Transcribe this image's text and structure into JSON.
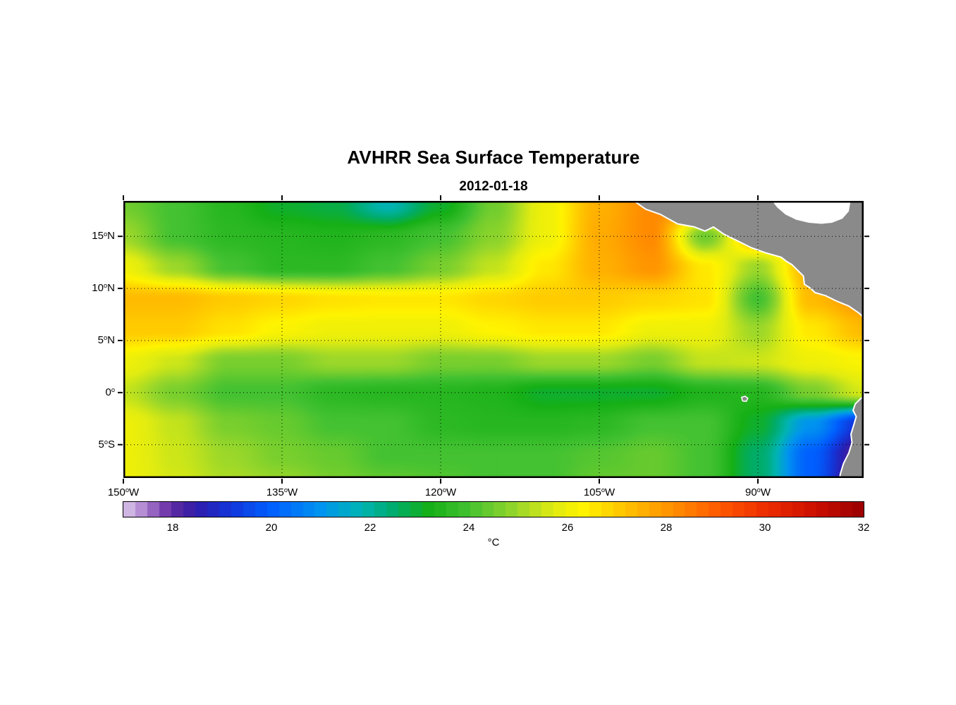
{
  "figure": {
    "title": "AVHRR Sea Surface Temperature",
    "date": "2012-01-18"
  },
  "axes": {
    "x_ticks": [
      {
        "deg": "150",
        "hem": "W",
        "lon": -150
      },
      {
        "deg": "135",
        "hem": "W",
        "lon": -135
      },
      {
        "deg": "120",
        "hem": "W",
        "lon": -120
      },
      {
        "deg": "105",
        "hem": "W",
        "lon": -105
      },
      {
        "deg": "90",
        "hem": "W",
        "lon": -90
      }
    ],
    "y_ticks": [
      {
        "deg": "15",
        "hem": "N",
        "lat": 15
      },
      {
        "deg": "10",
        "hem": "N",
        "lat": 10
      },
      {
        "deg": "5",
        "hem": "N",
        "lat": 5
      },
      {
        "deg": "0",
        "hem": "",
        "lat": 0
      },
      {
        "deg": "5",
        "hem": "S",
        "lat": -5
      }
    ]
  },
  "colorbar": {
    "label": "°C",
    "min": 17,
    "max": 32,
    "tick_values": [
      18,
      20,
      22,
      24,
      26,
      28,
      30,
      32
    ]
  },
  "chart_data": {
    "type": "heatmap",
    "title": "AVHRR Sea Surface Temperature",
    "subtitle": "2012-01-18",
    "units": "°C",
    "lon_range": [
      -150,
      -80
    ],
    "lat_range": [
      -8.2,
      18.4
    ],
    "value_range": [
      17,
      32
    ],
    "gridlines": {
      "lons": [
        -135,
        -120,
        -105,
        -90
      ],
      "lats": [
        15,
        10,
        5,
        0,
        -5
      ],
      "style": "dotted"
    },
    "grid_lons": [
      -150,
      -145,
      -140,
      -135,
      -130,
      -125,
      -120,
      -115,
      -110,
      -105,
      -100,
      -95,
      -90,
      -85,
      -80
    ],
    "grid_lats": [
      18,
      15,
      12,
      9,
      6,
      3,
      0,
      -3,
      -6,
      -9
    ],
    "sst_values": [
      [
        24.5,
        24.0,
        23.5,
        23.0,
        22.8,
        21.8,
        23.0,
        24.5,
        26.0,
        27.5,
        28.2,
        28.2,
        28.0,
        27.5,
        27.0
      ],
      [
        25.0,
        24.0,
        23.6,
        23.5,
        23.4,
        23.6,
        24.0,
        24.8,
        26.0,
        27.6,
        28.2,
        24.5,
        27.5,
        27.0,
        27.0
      ],
      [
        26.0,
        25.0,
        24.0,
        23.6,
        23.6,
        24.0,
        24.6,
        25.4,
        26.5,
        27.5,
        28.0,
        26.5,
        25.0,
        27.5,
        27.5
      ],
      [
        27.3,
        27.3,
        27.0,
        26.8,
        26.6,
        26.5,
        26.5,
        26.8,
        27.0,
        27.0,
        26.8,
        26.6,
        24.0,
        27.3,
        28.0
      ],
      [
        27.0,
        27.0,
        26.6,
        26.2,
        26.0,
        26.0,
        26.0,
        26.3,
        26.5,
        26.5,
        26.0,
        26.0,
        25.0,
        26.5,
        27.3
      ],
      [
        26.0,
        25.5,
        24.6,
        24.6,
        25.0,
        25.0,
        24.6,
        24.6,
        25.0,
        25.0,
        24.6,
        25.4,
        25.5,
        26.0,
        26.2
      ],
      [
        25.4,
        24.6,
        24.0,
        24.0,
        23.6,
        23.5,
        23.5,
        23.4,
        23.0,
        23.0,
        23.0,
        23.4,
        23.5,
        24.6,
        25.6
      ],
      [
        26.0,
        25.4,
        24.6,
        24.4,
        24.0,
        24.0,
        23.6,
        23.5,
        23.5,
        23.6,
        24.0,
        24.0,
        23.0,
        21.0,
        19.0
      ],
      [
        26.0,
        25.5,
        25.0,
        24.6,
        24.4,
        24.0,
        24.0,
        24.0,
        24.0,
        24.2,
        24.4,
        24.0,
        22.5,
        20.0,
        17.8
      ],
      [
        26.0,
        25.6,
        25.2,
        25.0,
        24.6,
        24.4,
        24.2,
        24.0,
        24.0,
        24.4,
        24.4,
        24.0,
        22.5,
        20.0,
        17.5
      ]
    ],
    "colormap_stops": [
      [
        17.0,
        "#dcc9ea"
      ],
      [
        17.4,
        "#b289d2"
      ],
      [
        17.8,
        "#7a3fb0"
      ],
      [
        18.2,
        "#47209e"
      ],
      [
        18.6,
        "#2a20b4"
      ],
      [
        19.2,
        "#1238dc"
      ],
      [
        20.0,
        "#0060ff"
      ],
      [
        21.0,
        "#0094f0"
      ],
      [
        21.8,
        "#00b4b4"
      ],
      [
        22.5,
        "#00ac6a"
      ],
      [
        23.2,
        "#16b016"
      ],
      [
        24.0,
        "#44c232"
      ],
      [
        25.0,
        "#9cd82a"
      ],
      [
        25.7,
        "#e0ec12"
      ],
      [
        26.3,
        "#fff400"
      ],
      [
        27.0,
        "#ffcc00"
      ],
      [
        28.0,
        "#ff9600"
      ],
      [
        29.0,
        "#ff5e00"
      ],
      [
        30.0,
        "#ee2e00"
      ],
      [
        31.0,
        "#cc0f00"
      ],
      [
        32.0,
        "#980000"
      ]
    ],
    "land": {
      "color": "#8a8a8a",
      "coast_color": "#ffffff",
      "middle_america": [
        [
          -102.0,
          18.6
        ],
        [
          -100.6,
          17.6
        ],
        [
          -99.2,
          17.1
        ],
        [
          -97.6,
          16.2
        ],
        [
          -96.0,
          15.9
        ],
        [
          -95.0,
          15.5
        ],
        [
          -94.2,
          15.9
        ],
        [
          -93.2,
          15.2
        ],
        [
          -92.0,
          14.6
        ],
        [
          -90.6,
          13.9
        ],
        [
          -89.2,
          13.4
        ],
        [
          -87.8,
          13.0
        ],
        [
          -87.3,
          12.6
        ],
        [
          -86.8,
          12.3
        ],
        [
          -86.2,
          11.7
        ],
        [
          -85.7,
          11.2
        ],
        [
          -85.6,
          10.4
        ],
        [
          -85.0,
          10.0
        ],
        [
          -84.6,
          9.6
        ],
        [
          -83.6,
          9.3
        ],
        [
          -82.6,
          8.8
        ],
        [
          -81.4,
          8.3
        ],
        [
          -80.4,
          7.6
        ],
        [
          -79.8,
          7.0
        ],
        [
          -79.5,
          6.5
        ],
        [
          -79.5,
          18.6
        ]
      ],
      "caribbean_mask": [
        [
          -88.8,
          18.6
        ],
        [
          -88.2,
          17.8
        ],
        [
          -87.4,
          17.1
        ],
        [
          -86.4,
          16.6
        ],
        [
          -85.2,
          16.3
        ],
        [
          -84.0,
          16.2
        ],
        [
          -83.0,
          16.3
        ],
        [
          -82.0,
          16.7
        ],
        [
          -81.4,
          17.4
        ],
        [
          -81.2,
          18.6
        ]
      ],
      "south_america": [
        [
          -79.8,
          -0.2
        ],
        [
          -80.3,
          -0.6
        ],
        [
          -80.8,
          -1.1
        ],
        [
          -81.0,
          -1.7
        ],
        [
          -80.7,
          -2.3
        ],
        [
          -80.9,
          -3.0
        ],
        [
          -81.2,
          -4.0
        ],
        [
          -81.1,
          -4.8
        ],
        [
          -81.4,
          -5.8
        ],
        [
          -81.9,
          -6.8
        ],
        [
          -82.2,
          -7.8
        ],
        [
          -82.3,
          -8.4
        ],
        [
          -79.5,
          -8.4
        ],
        [
          -79.5,
          -0.4
        ]
      ],
      "galapagos": [
        [
          -91.55,
          -0.45
        ],
        [
          -91.2,
          -0.35
        ],
        [
          -90.95,
          -0.55
        ],
        [
          -91.1,
          -0.85
        ],
        [
          -91.45,
          -0.8
        ]
      ]
    }
  }
}
